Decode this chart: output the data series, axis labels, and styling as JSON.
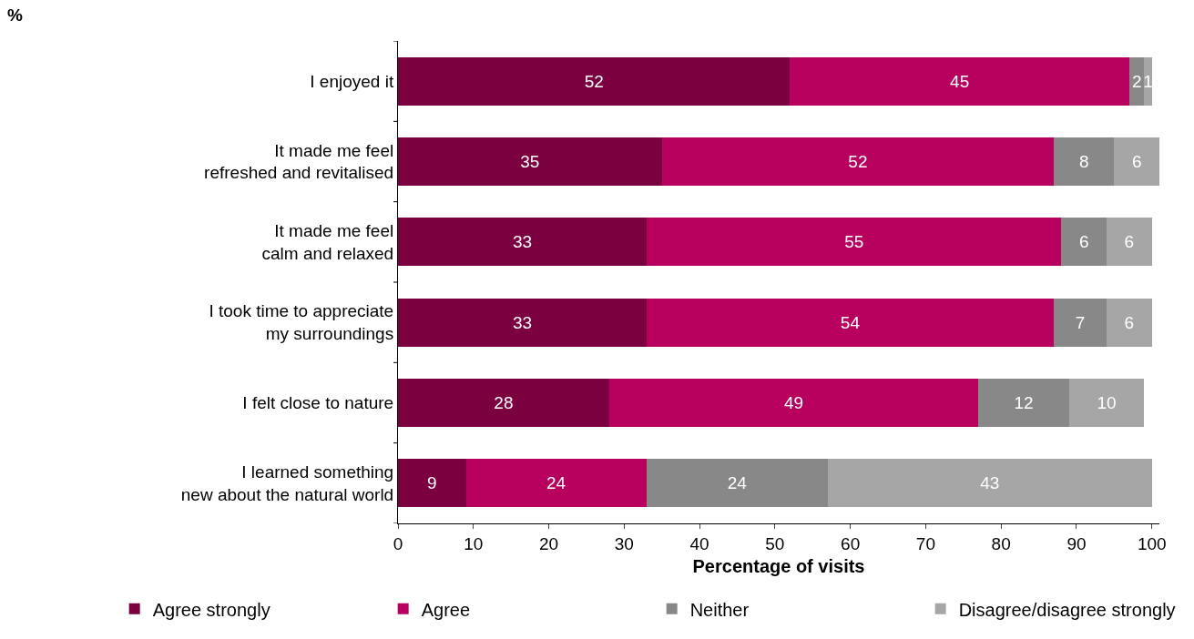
{
  "chart_data": {
    "type": "bar",
    "orientation": "horizontal",
    "stacked": true,
    "annotations": [
      "%"
    ],
    "xlabel": "Percentage of visits",
    "categories": [
      "I enjoyed it",
      "It made me feel\nrefreshed and revitalised",
      "It made me feel\ncalm and relaxed",
      "I took time to appreciate\nmy surroundings",
      "I felt close to nature",
      "I learned something\nnew about the natural world"
    ],
    "series": [
      {
        "name": "Agree strongly",
        "color": "#7a0040",
        "values": [
          52,
          35,
          33,
          33,
          28,
          9
        ]
      },
      {
        "name": "Agree",
        "color": "#b8005f",
        "values": [
          45,
          52,
          55,
          54,
          49,
          24
        ]
      },
      {
        "name": "Neither",
        "color": "#888888",
        "values": [
          2,
          8,
          6,
          7,
          12,
          24
        ]
      },
      {
        "name": "Disagree/disagree strongly",
        "color": "#a6a6a6",
        "values": [
          1,
          6,
          6,
          6,
          10,
          43
        ]
      }
    ],
    "xlim": [
      0,
      101
    ],
    "xticks": [
      0,
      10,
      20,
      30,
      40,
      50,
      60,
      70,
      80,
      90,
      100
    ],
    "grid": false,
    "legend": "bottom",
    "data_labels": true
  }
}
